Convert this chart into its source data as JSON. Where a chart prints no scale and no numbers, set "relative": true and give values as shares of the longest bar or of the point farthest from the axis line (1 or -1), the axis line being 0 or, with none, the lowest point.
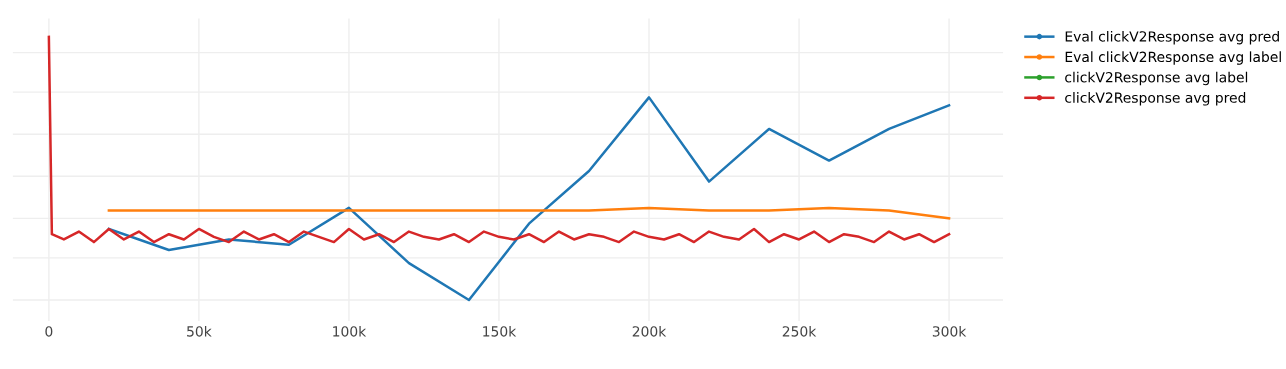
{
  "chart_data": {
    "type": "line",
    "relative": true,
    "grid": true,
    "legend": "top right",
    "tick_labels": "x",
    "xlim": [
      -12000,
      318000
    ],
    "xticks": [
      0,
      {
        "value": 50000,
        "label": "50k"
      },
      {
        "value": 100000,
        "label": "100k"
      },
      {
        "value": 150000,
        "label": "150k"
      },
      {
        "value": 200000,
        "label": "200k"
      },
      {
        "value": 250000,
        "label": "250k"
      },
      {
        "value": 300000,
        "label": "300k"
      }
    ],
    "series": [
      {
        "name": "Eval clickV2Response avg pred",
        "color": "#1f77b4",
        "x": [
          20000,
          40000,
          60000,
          80000,
          100000,
          120000,
          140000,
          160000,
          180000,
          200000,
          220000,
          240000,
          260000,
          280000,
          300000
        ],
        "values": [
          0.27,
          0.19,
          0.23,
          0.21,
          0.35,
          0.14,
          0,
          0.29,
          0.49,
          0.77,
          0.45,
          0.65,
          0.53,
          0.65,
          0.74
        ]
      },
      {
        "name": "Eval clickV2Response avg label",
        "color": "#ff7f0e",
        "x": [
          20000,
          40000,
          60000,
          80000,
          100000,
          120000,
          140000,
          160000,
          180000,
          200000,
          220000,
          240000,
          260000,
          280000,
          300000
        ],
        "values": [
          0.34,
          0.34,
          0.34,
          0.34,
          0.34,
          0.34,
          0.34,
          0.34,
          0.34,
          0.35,
          0.34,
          0.34,
          0.35,
          0.34,
          0.31
        ]
      },
      {
        "name": "clickV2Response avg label",
        "color": "#2ca02c"
      },
      {
        "name": "clickV2Response avg pred",
        "color": "#d62728",
        "x": [
          0,
          1000,
          5000,
          10000,
          15000,
          20000,
          25000,
          30000,
          35000,
          40000,
          45000,
          50000,
          55000,
          60000,
          65000,
          70000,
          75000,
          80000,
          85000,
          90000,
          95000,
          100000,
          105000,
          110000,
          115000,
          120000,
          125000,
          130000,
          135000,
          140000,
          145000,
          150000,
          155000,
          160000,
          165000,
          170000,
          175000,
          180000,
          185000,
          190000,
          195000,
          200000,
          205000,
          210000,
          215000,
          220000,
          225000,
          230000,
          235000,
          240000,
          245000,
          250000,
          255000,
          260000,
          265000,
          270000,
          275000,
          280000,
          285000,
          290000,
          295000,
          300000
        ],
        "values": [
          1.0,
          0.25,
          0.23,
          0.26,
          0.22,
          0.27,
          0.23,
          0.26,
          0.22,
          0.25,
          0.23,
          0.27,
          0.24,
          0.22,
          0.26,
          0.23,
          0.25,
          0.22,
          0.26,
          0.24,
          0.22,
          0.27,
          0.23,
          0.25,
          0.22,
          0.26,
          0.24,
          0.23,
          0.25,
          0.22,
          0.26,
          0.24,
          0.23,
          0.25,
          0.22,
          0.26,
          0.23,
          0.25,
          0.24,
          0.22,
          0.26,
          0.24,
          0.23,
          0.25,
          0.22,
          0.26,
          0.24,
          0.23,
          0.27,
          0.22,
          0.25,
          0.23,
          0.26,
          0.22,
          0.25,
          0.24,
          0.22,
          0.26,
          0.23,
          0.25,
          0.22,
          0.25
        ]
      }
    ]
  }
}
